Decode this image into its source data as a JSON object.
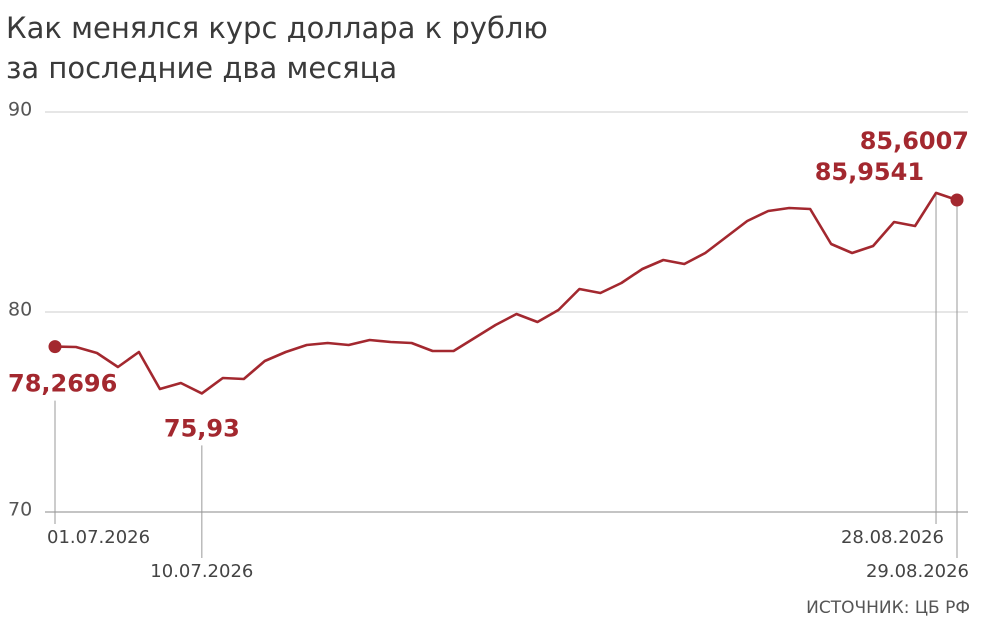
{
  "chart_data": {
    "type": "line",
    "title": [
      "Как менялся курс доллара к рублю",
      "за последние два месяца"
    ],
    "source": "ИСТОЧНИК: ЦБ РФ",
    "categories": [
      "01.07.2026",
      null,
      null,
      null,
      null,
      null,
      null,
      "10.07.2026",
      null,
      null,
      null,
      null,
      null,
      null,
      null,
      null,
      null,
      null,
      null,
      null,
      null,
      null,
      null,
      null,
      null,
      null,
      null,
      null,
      null,
      null,
      null,
      null,
      null,
      null,
      null,
      null,
      null,
      null,
      null,
      null,
      null,
      null,
      "28.08.2026",
      "29.08.2026"
    ],
    "series": [
      {
        "color": "#a3282f",
        "values": [
          78.2696,
          78.25,
          77.95,
          77.25,
          78.0,
          76.15,
          76.45,
          75.93,
          76.7,
          76.65,
          77.55,
          78.0,
          78.35,
          78.45,
          78.35,
          78.6,
          78.5,
          78.45,
          78.05,
          78.05,
          78.7,
          79.35,
          79.9,
          79.5,
          80.1,
          81.15,
          80.95,
          81.45,
          82.15,
          82.6,
          82.4,
          82.95,
          83.75,
          84.55,
          85.05,
          85.2,
          85.15,
          83.4,
          82.95,
          83.3,
          84.5,
          84.3,
          85.9541,
          85.6007
        ],
        "value_labels": [
          "78,2696",
          null,
          null,
          null,
          null,
          null,
          null,
          "75,93",
          null,
          null,
          null,
          null,
          null,
          null,
          null,
          null,
          null,
          null,
          null,
          null,
          null,
          null,
          null,
          null,
          null,
          null,
          null,
          null,
          null,
          null,
          null,
          null,
          null,
          null,
          null,
          null,
          null,
          null,
          null,
          null,
          null,
          null,
          "85,9541",
          "85,6007"
        ]
      }
    ],
    "ylim": [
      70,
      90
    ],
    "yticks": [
      70,
      80,
      90
    ],
    "grid": true
  }
}
